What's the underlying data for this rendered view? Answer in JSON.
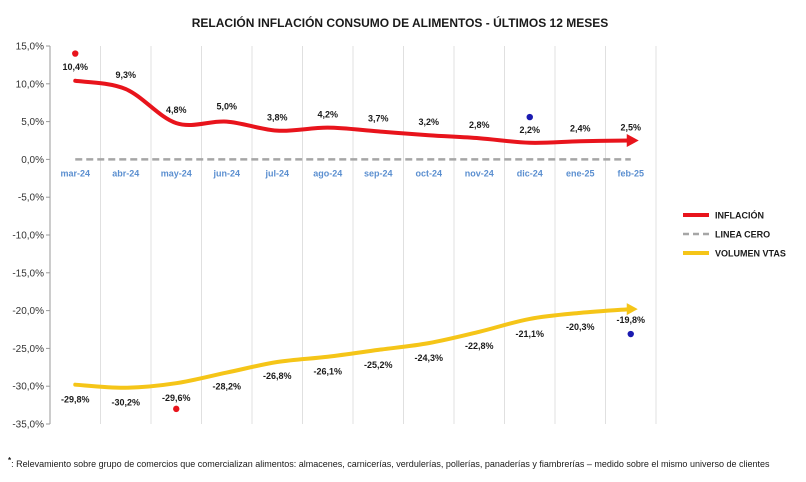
{
  "chart_data": {
    "type": "line",
    "title": "RELACIÓN INFLACIÓN CONSUMO DE ALIMENTOS - ÚLTIMOS 12 MESES",
    "categories": [
      "mar-24",
      "abr-24",
      "may-24",
      "jun-24",
      "jul-24",
      "ago-24",
      "sep-24",
      "oct-24",
      "nov-24",
      "dic-24",
      "ene-25",
      "feb-25"
    ],
    "ylim": [
      -35,
      15
    ],
    "yticks": [
      15,
      10,
      5,
      0,
      -5,
      -10,
      -15,
      -20,
      -25,
      -30,
      -35
    ],
    "ytick_labels": [
      "15,0%",
      "10,0%",
      "5,0%",
      "0,0%",
      "-5,0%",
      "-10,0%",
      "-15,0%",
      "-20,0%",
      "-25,0%",
      "-30,0%",
      "-35,0%"
    ],
    "series": [
      {
        "name": "INFLACIÓN",
        "color": "#e8141c",
        "values": [
          10.4,
          9.3,
          4.8,
          5.0,
          3.8,
          4.2,
          3.7,
          3.2,
          2.8,
          2.2,
          2.4,
          2.5
        ],
        "labels": [
          "10,4%",
          "9,3%",
          "4,8%",
          "5,0%",
          "3,8%",
          "4,2%",
          "3,7%",
          "3,2%",
          "2,8%",
          "2,2%",
          "2,4%",
          "2,5%"
        ]
      },
      {
        "name": "LINEA CERO",
        "color": "#a6a6a6",
        "values": [
          0,
          0,
          0,
          0,
          0,
          0,
          0,
          0,
          0,
          0,
          0,
          0
        ]
      },
      {
        "name": "VOLUMEN VTAS",
        "color": "#f5c518",
        "values": [
          -29.8,
          -30.2,
          -29.6,
          -28.2,
          -26.8,
          -26.1,
          -25.2,
          -24.3,
          -22.8,
          -21.1,
          -20.3,
          -19.8
        ],
        "labels": [
          "-29,8%",
          "-30,2%",
          "-29,6%",
          "-28,2%",
          "-26,8%",
          "-26,1%",
          "-25,2%",
          "-24,3%",
          "-22,8%",
          "-21,1%",
          "-20,3%",
          "-19,8%"
        ]
      }
    ],
    "markers": [
      {
        "category": "mar-24",
        "value": 14.0,
        "color": "#e8141c"
      },
      {
        "category": "dic-24",
        "value": 5.6,
        "color": "#1a1ab0"
      },
      {
        "category": "may-24",
        "value": -33.0,
        "color": "#e8141c"
      },
      {
        "category": "feb-25",
        "value": -23.1,
        "color": "#1a1ab0"
      }
    ],
    "legend_position": "right"
  },
  "footnote": {
    "mark": "*",
    "text": ": Relevamiento sobre grupo de comercios que comercializan alimentos: almacenes, carnicerías, verdulerías, pollerías, panaderías y fiambrerías – medido sobre el mismo universo de clientes"
  }
}
